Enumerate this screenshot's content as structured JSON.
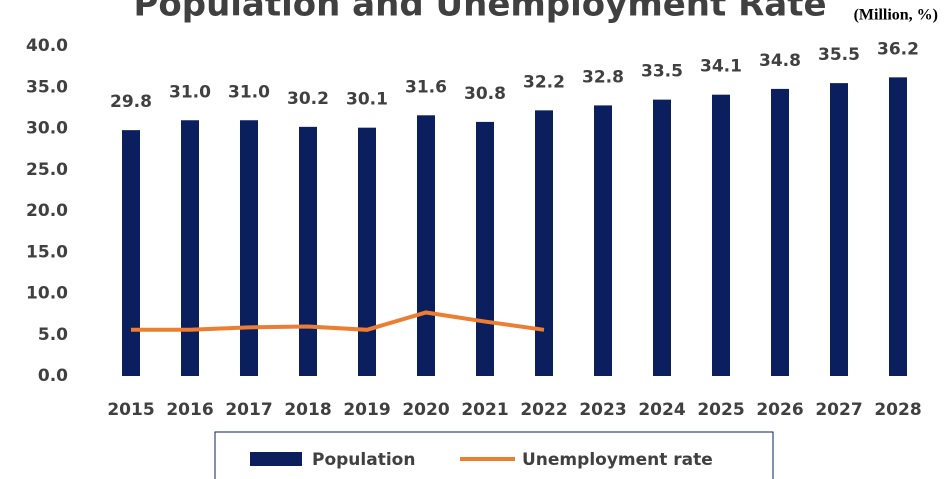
{
  "chart_data": {
    "type": "bar",
    "title": "Population and Unemployment Rate",
    "unit_note": "(Million, %)",
    "categories": [
      "2015",
      "2016",
      "2017",
      "2018",
      "2019",
      "2020",
      "2021",
      "2022",
      "2023",
      "2024",
      "2025",
      "2026",
      "2027",
      "2028"
    ],
    "series": [
      {
        "name": "Population",
        "type": "bar",
        "color": "#0b1f5e",
        "values": [
          29.8,
          31.0,
          31.0,
          30.2,
          30.1,
          31.6,
          30.8,
          32.2,
          32.8,
          33.5,
          34.1,
          34.8,
          35.5,
          36.2
        ],
        "value_labels": [
          "29.8",
          "31.0",
          "31.0",
          "30.2",
          "30.1",
          "31.6",
          "30.8",
          "32.2",
          "32.8",
          "33.5",
          "34.1",
          "34.8",
          "35.5",
          "36.2"
        ]
      },
      {
        "name": "Unemployment rate",
        "type": "line",
        "color": "#ed7d31",
        "values": [
          5.6,
          5.6,
          5.9,
          6.0,
          5.6,
          7.7,
          6.6,
          5.6,
          null,
          null,
          null,
          null,
          null,
          null
        ]
      }
    ],
    "ylim": [
      0,
      40
    ],
    "yticks": [
      {
        "value": 0,
        "label": "0.0"
      },
      {
        "value": 5,
        "label": "5.0"
      },
      {
        "value": 10,
        "label": "10.0"
      },
      {
        "value": 15,
        "label": "15.0"
      },
      {
        "value": 20,
        "label": "20.0"
      },
      {
        "value": 25,
        "label": "25.0"
      },
      {
        "value": 30,
        "label": "30.0"
      },
      {
        "value": 35,
        "label": "35.0"
      },
      {
        "value": 40,
        "label": "40.0"
      }
    ],
    "grid": false,
    "legend": "bottom"
  }
}
